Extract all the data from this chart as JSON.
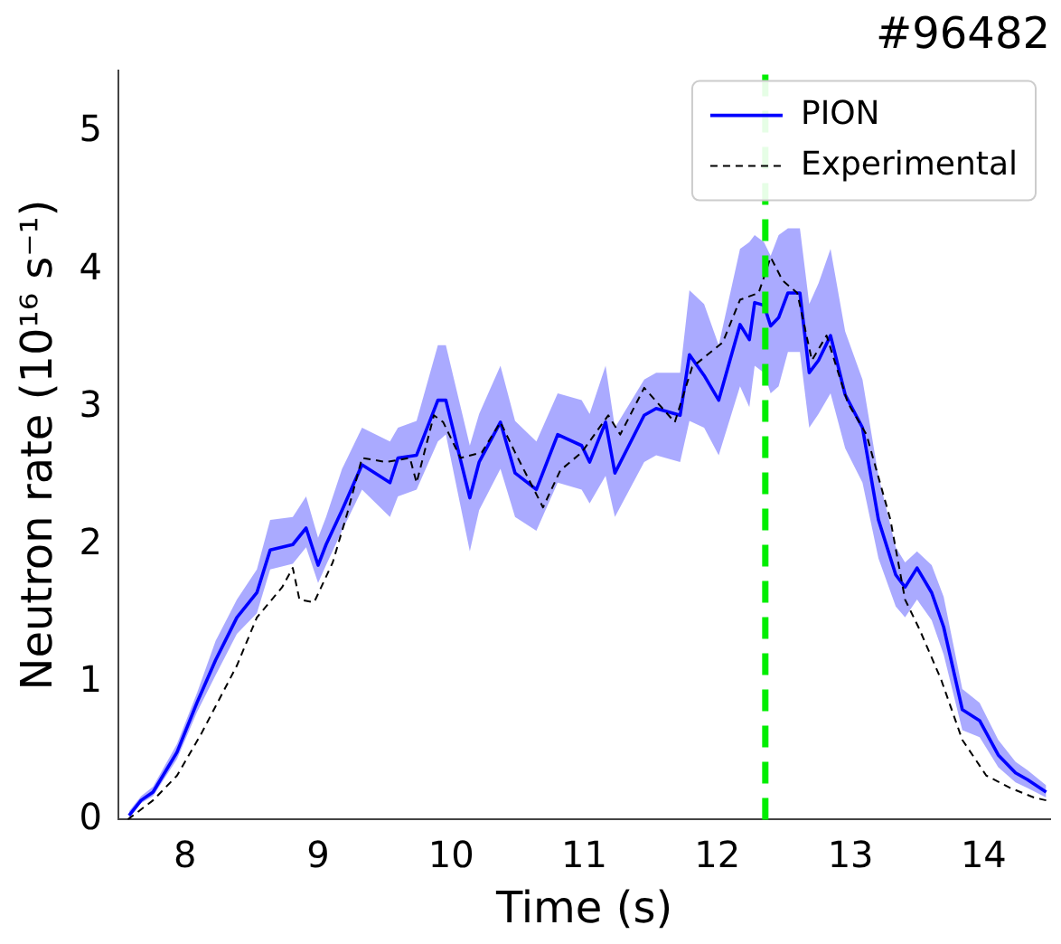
{
  "chart_data": {
    "type": "line",
    "title": "#96482",
    "xlabel": "Time (s)",
    "ylabel": "Neutron rate (10¹⁶ s⁻¹)",
    "xlim": [
      7.5,
      14.5
    ],
    "xticks": [
      8,
      9,
      10,
      11,
      12,
      13,
      14
    ],
    "ylim": [
      0,
      5.45
    ],
    "yticks": [
      0,
      1,
      2,
      3,
      4,
      5
    ],
    "grid": false,
    "legend": "top right",
    "marker": "none",
    "ref_lines": [
      {
        "axis": "x",
        "value": 12.36,
        "color": "#00ee00",
        "line_style": "dashed"
      }
    ],
    "series": [
      {
        "name": "PION",
        "color": "#0000ff",
        "line_style": "solid",
        "x": [
          7.58,
          7.67,
          7.76,
          7.94,
          8.09,
          8.23,
          8.39,
          8.54,
          8.64,
          8.81,
          8.91,
          9.0,
          9.06,
          9.18,
          9.33,
          9.54,
          9.6,
          9.74,
          9.9,
          9.96,
          10.14,
          10.21,
          10.37,
          10.48,
          10.64,
          10.8,
          10.98,
          11.04,
          11.16,
          11.23,
          11.45,
          11.54,
          11.72,
          11.79,
          11.9,
          12.01,
          12.17,
          12.24,
          12.28,
          12.35,
          12.4,
          12.46,
          12.53,
          12.62,
          12.69,
          12.76,
          12.85,
          12.96,
          13.09,
          13.21,
          13.34,
          13.41,
          13.5,
          13.61,
          13.7,
          13.84,
          13.97,
          14.11,
          14.24,
          14.33,
          14.47
        ],
        "values": [
          0.03,
          0.14,
          0.2,
          0.49,
          0.85,
          1.16,
          1.47,
          1.65,
          1.96,
          2.0,
          2.12,
          1.85,
          2.0,
          2.25,
          2.58,
          2.45,
          2.63,
          2.65,
          3.05,
          3.05,
          2.34,
          2.6,
          2.89,
          2.52,
          2.4,
          2.8,
          2.72,
          2.6,
          2.89,
          2.52,
          2.94,
          2.99,
          2.94,
          3.38,
          3.23,
          3.05,
          3.6,
          3.49,
          3.76,
          3.74,
          3.59,
          3.65,
          3.83,
          3.83,
          3.25,
          3.34,
          3.52,
          3.09,
          2.85,
          2.18,
          1.78,
          1.69,
          1.83,
          1.65,
          1.4,
          0.8,
          0.72,
          0.47,
          0.34,
          0.29,
          0.2
        ],
        "lower": [
          0.01,
          0.12,
          0.17,
          0.44,
          0.78,
          1.05,
          1.35,
          1.5,
          1.82,
          1.86,
          1.98,
          1.72,
          1.85,
          2.1,
          2.4,
          2.2,
          2.35,
          2.4,
          2.75,
          2.8,
          1.95,
          2.25,
          2.55,
          2.2,
          2.1,
          2.45,
          2.4,
          2.3,
          2.5,
          2.2,
          2.6,
          2.65,
          2.6,
          2.9,
          2.85,
          2.65,
          3.15,
          3.0,
          3.3,
          3.25,
          3.1,
          3.15,
          3.4,
          3.4,
          2.85,
          2.95,
          3.1,
          2.7,
          2.45,
          1.9,
          1.55,
          1.47,
          1.6,
          1.45,
          1.2,
          0.65,
          0.6,
          0.38,
          0.27,
          0.23,
          0.16
        ],
        "upper": [
          0.06,
          0.17,
          0.24,
          0.55,
          0.92,
          1.3,
          1.6,
          1.82,
          2.18,
          2.2,
          2.35,
          2.05,
          2.2,
          2.55,
          2.85,
          2.75,
          2.85,
          2.9,
          3.45,
          3.45,
          2.72,
          2.95,
          3.3,
          2.9,
          2.75,
          3.1,
          3.05,
          2.95,
          3.3,
          2.85,
          3.2,
          3.25,
          3.25,
          3.85,
          3.75,
          3.45,
          4.15,
          4.2,
          4.25,
          4.2,
          4.1,
          4.25,
          4.3,
          4.3,
          3.75,
          3.9,
          4.15,
          3.55,
          3.2,
          2.5,
          1.98,
          1.87,
          1.95,
          1.85,
          1.62,
          0.95,
          0.85,
          0.58,
          0.42,
          0.36,
          0.25
        ]
      },
      {
        "name": "Experimental",
        "color": "#000000",
        "line_style": "dashed",
        "x": [
          7.57,
          7.76,
          7.94,
          8.12,
          8.39,
          8.54,
          8.73,
          8.81,
          8.86,
          8.97,
          9.11,
          9.22,
          9.33,
          9.51,
          9.69,
          9.74,
          9.87,
          9.94,
          10.07,
          10.23,
          10.37,
          10.48,
          10.69,
          10.82,
          10.98,
          11.18,
          11.27,
          11.45,
          11.68,
          11.81,
          12.04,
          12.17,
          12.31,
          12.4,
          12.49,
          12.6,
          12.71,
          12.82,
          12.98,
          13.12,
          13.3,
          13.41,
          13.52,
          13.68,
          13.84,
          14.02,
          14.2,
          14.38,
          14.47
        ],
        "values": [
          0.0,
          0.14,
          0.32,
          0.62,
          1.12,
          1.47,
          1.69,
          1.83,
          1.6,
          1.58,
          1.87,
          2.23,
          2.63,
          2.6,
          2.63,
          2.45,
          2.94,
          2.89,
          2.63,
          2.67,
          2.89,
          2.67,
          2.27,
          2.54,
          2.67,
          2.94,
          2.8,
          3.14,
          2.89,
          3.29,
          3.47,
          3.78,
          3.83,
          4.09,
          3.92,
          3.83,
          3.34,
          3.52,
          3.03,
          2.8,
          2.18,
          1.6,
          1.38,
          1.02,
          0.58,
          0.32,
          0.23,
          0.16,
          0.14
        ]
      }
    ]
  }
}
